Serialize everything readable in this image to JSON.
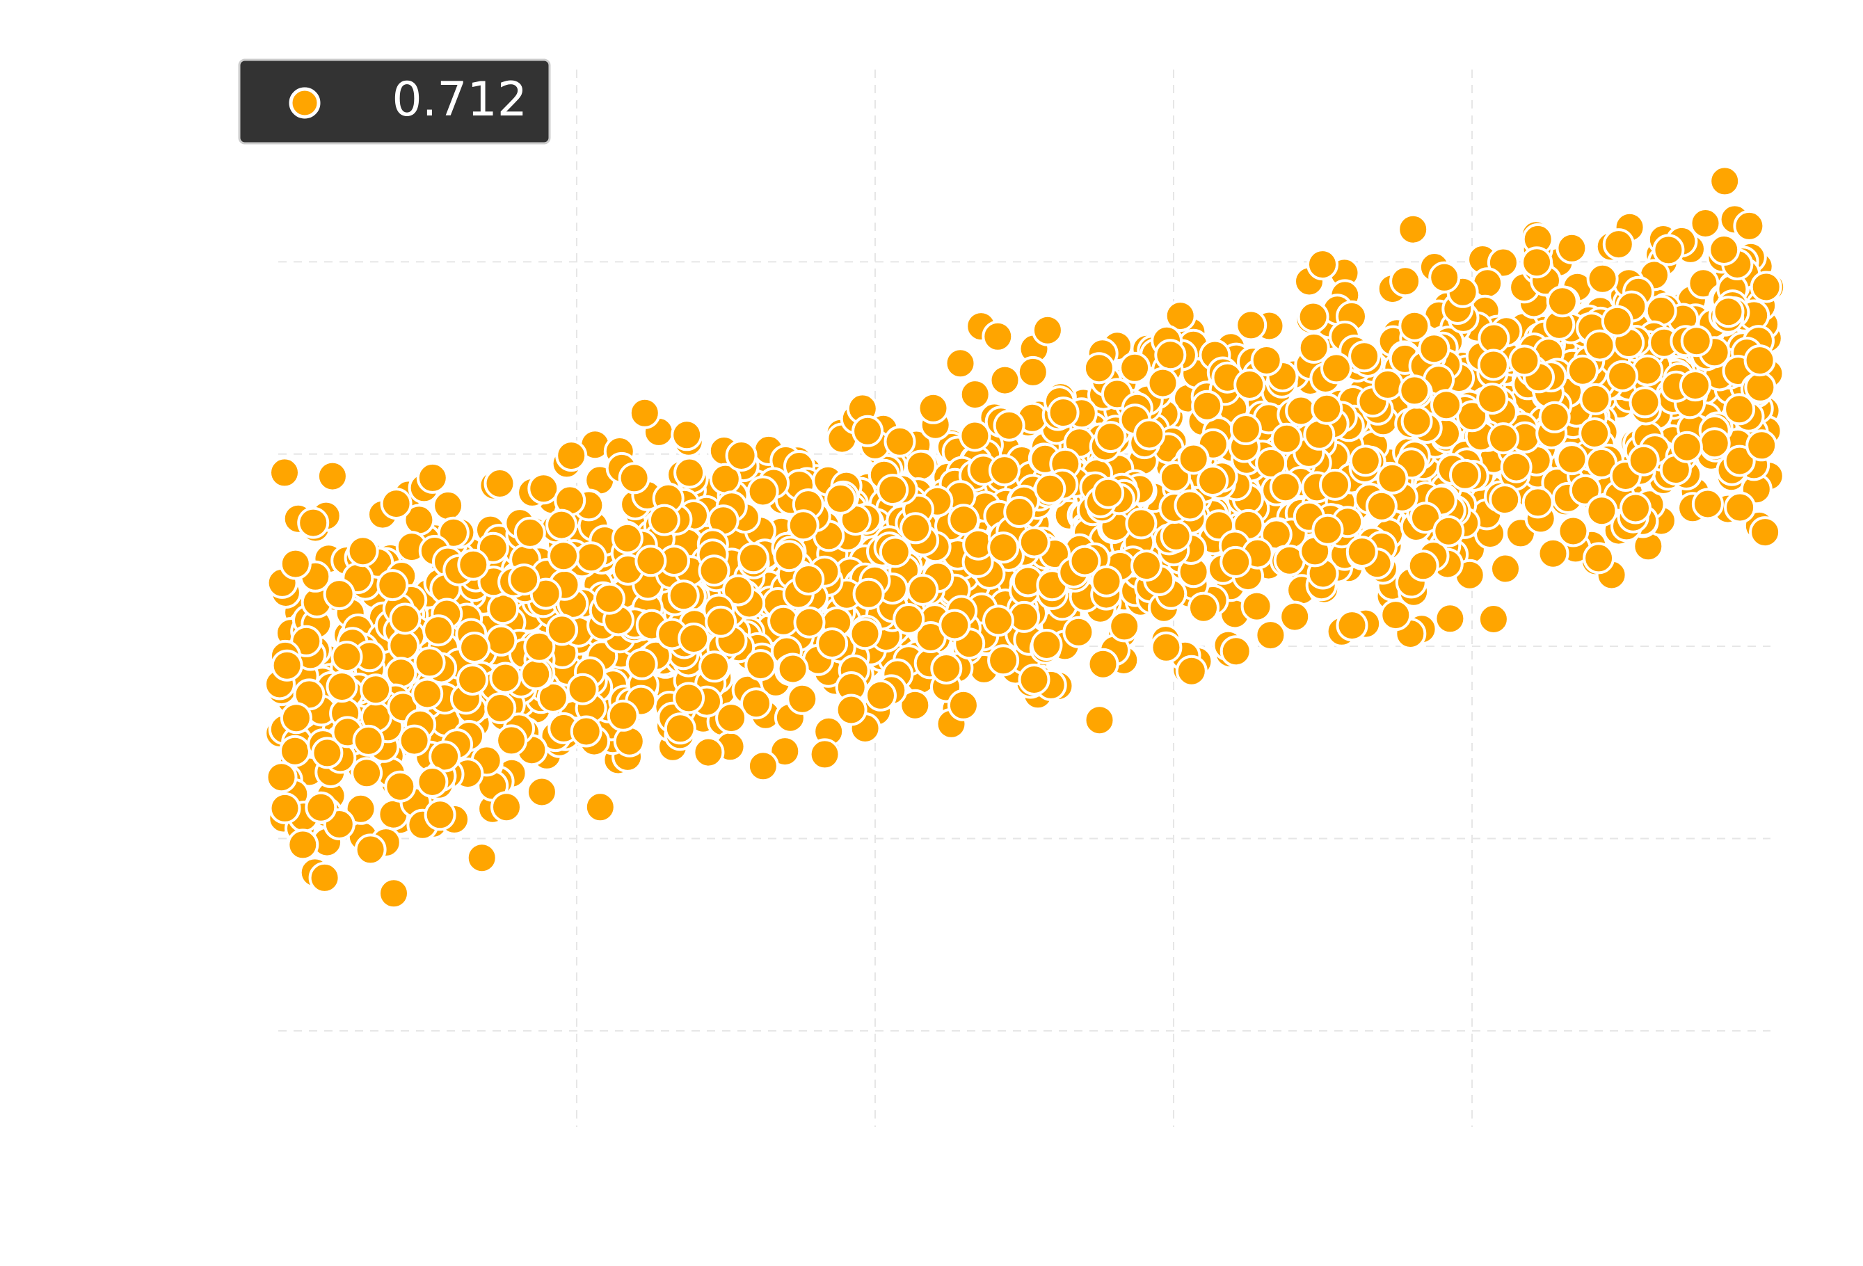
{
  "chart_data": {
    "type": "scatter",
    "title": "",
    "xlabel": "",
    "ylabel": "",
    "grid": true,
    "point_count": 2500,
    "trend": {
      "x_range": [
        0.0,
        1.0
      ],
      "y_at_x_min": 0.35,
      "y_at_x_max": 0.7,
      "band_halfwidth": 0.23,
      "outlier_spread": 0.33
    },
    "xlim": [
      0.0,
      1.0
    ],
    "ylim": [
      -0.1,
      1.0
    ],
    "legend": {
      "placement": "top-left",
      "entries": [
        {
          "label": "0.712",
          "marker": "circle",
          "color": "#FFA500"
        }
      ]
    },
    "colors": {
      "marker_fill": "#FFA500",
      "marker_edge": "#ffffff",
      "legend_bg": "#333333",
      "legend_border": "#cccccc",
      "grid": "#e6e6e6"
    }
  }
}
